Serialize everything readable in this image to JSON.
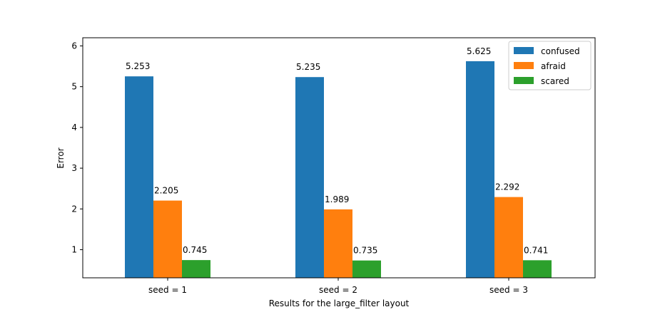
{
  "chart_data": {
    "type": "bar",
    "categories": [
      "seed = 1",
      "seed = 2",
      "seed = 3"
    ],
    "series": [
      {
        "name": "confused",
        "values": [
          5.253,
          5.235,
          5.625
        ],
        "labels": [
          "5.253",
          "5.235",
          "5.625"
        ],
        "color": "#1f77b4"
      },
      {
        "name": "afraid",
        "values": [
          2.205,
          1.989,
          2.292
        ],
        "labels": [
          "2.205",
          "1.989",
          "2.292"
        ],
        "color": "#ff7f0e"
      },
      {
        "name": "scared",
        "values": [
          0.745,
          0.735,
          0.741
        ],
        "labels": [
          "0.745",
          "0.735",
          "0.741"
        ],
        "color": "#2ca02c"
      }
    ],
    "xlabel": "Results for the large_filter layout",
    "ylabel": "Error",
    "ylim": [
      0.31,
      6.2
    ],
    "yticks": [
      1,
      2,
      3,
      4,
      5,
      6
    ],
    "grid": false,
    "legend_position": "top-right"
  }
}
